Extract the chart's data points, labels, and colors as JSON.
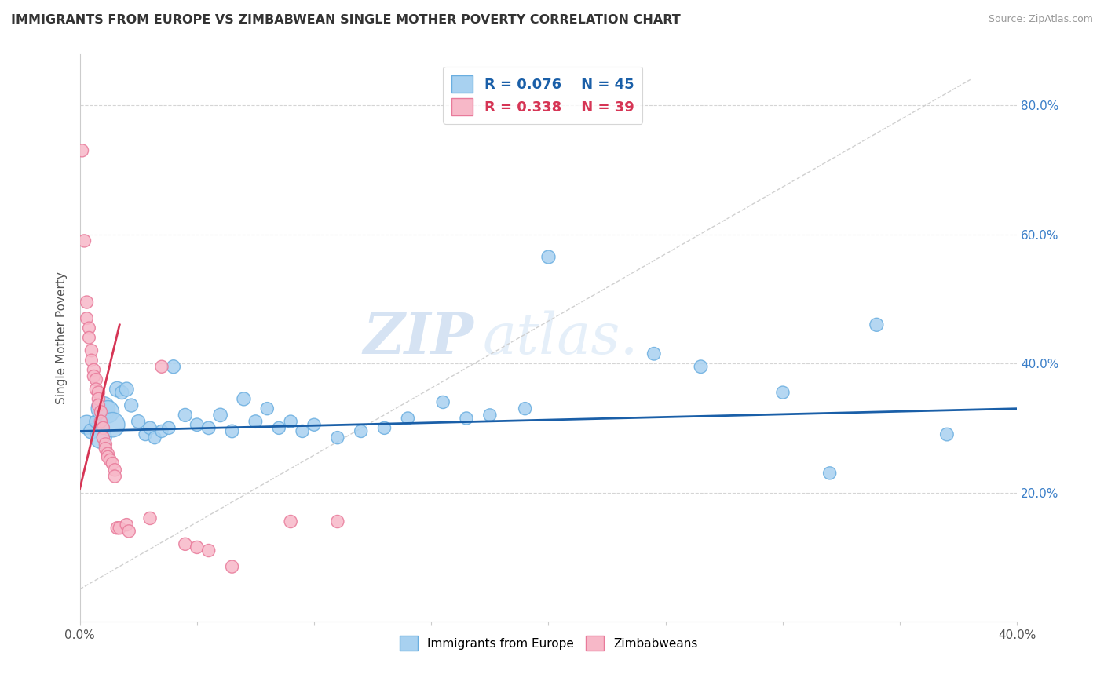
{
  "title": "IMMIGRANTS FROM EUROPE VS ZIMBABWEAN SINGLE MOTHER POVERTY CORRELATION CHART",
  "source": "Source: ZipAtlas.com",
  "ylabel": "Single Mother Poverty",
  "xlim": [
    0.0,
    0.4
  ],
  "ylim": [
    0.0,
    0.88
  ],
  "xticks": [
    0.0,
    0.05,
    0.1,
    0.15,
    0.2,
    0.25,
    0.3,
    0.35,
    0.4
  ],
  "xtick_labels": [
    "0.0%",
    "",
    "",
    "",
    "",
    "",
    "",
    "",
    "40.0%"
  ],
  "yticks": [
    0.2,
    0.4,
    0.6,
    0.8
  ],
  "ytick_labels": [
    "20.0%",
    "40.0%",
    "60.0%",
    "80.0%"
  ],
  "legend_blue_r": "R = 0.076",
  "legend_blue_n": "N = 45",
  "legend_pink_r": "R = 0.338",
  "legend_pink_n": "N = 39",
  "watermark_zip": "ZIP",
  "watermark_atlas": "atlas.",
  "blue_color": "#a8d1f0",
  "blue_edge_color": "#6aaee0",
  "pink_color": "#f7b8c8",
  "pink_edge_color": "#e87a9a",
  "blue_line_color": "#1a5fa8",
  "pink_line_color": "#d63555",
  "dash_color": "#d0d0d0",
  "blue_data": [
    [
      0.003,
      0.305,
      200
    ],
    [
      0.005,
      0.295,
      130
    ],
    [
      0.007,
      0.31,
      100
    ],
    [
      0.009,
      0.285,
      260
    ],
    [
      0.01,
      0.33,
      320
    ],
    [
      0.012,
      0.325,
      280
    ],
    [
      0.014,
      0.305,
      340
    ],
    [
      0.016,
      0.36,
      130
    ],
    [
      0.018,
      0.355,
      100
    ],
    [
      0.02,
      0.36,
      110
    ],
    [
      0.022,
      0.335,
      100
    ],
    [
      0.025,
      0.31,
      100
    ],
    [
      0.028,
      0.29,
      90
    ],
    [
      0.03,
      0.3,
      95
    ],
    [
      0.032,
      0.285,
      90
    ],
    [
      0.035,
      0.295,
      90
    ],
    [
      0.038,
      0.3,
      90
    ],
    [
      0.04,
      0.395,
      100
    ],
    [
      0.045,
      0.32,
      100
    ],
    [
      0.05,
      0.305,
      95
    ],
    [
      0.055,
      0.3,
      95
    ],
    [
      0.06,
      0.32,
      105
    ],
    [
      0.065,
      0.295,
      95
    ],
    [
      0.07,
      0.345,
      100
    ],
    [
      0.075,
      0.31,
      95
    ],
    [
      0.08,
      0.33,
      90
    ],
    [
      0.085,
      0.3,
      90
    ],
    [
      0.09,
      0.31,
      90
    ],
    [
      0.095,
      0.295,
      90
    ],
    [
      0.1,
      0.305,
      90
    ],
    [
      0.11,
      0.285,
      90
    ],
    [
      0.12,
      0.295,
      90
    ],
    [
      0.13,
      0.3,
      90
    ],
    [
      0.14,
      0.315,
      90
    ],
    [
      0.155,
      0.34,
      90
    ],
    [
      0.165,
      0.315,
      90
    ],
    [
      0.175,
      0.32,
      90
    ],
    [
      0.19,
      0.33,
      90
    ],
    [
      0.2,
      0.565,
      100
    ],
    [
      0.245,
      0.415,
      95
    ],
    [
      0.265,
      0.395,
      95
    ],
    [
      0.3,
      0.355,
      90
    ],
    [
      0.32,
      0.23,
      90
    ],
    [
      0.34,
      0.46,
      100
    ],
    [
      0.37,
      0.29,
      95
    ]
  ],
  "pink_data": [
    [
      0.001,
      0.73,
      90
    ],
    [
      0.002,
      0.59,
      90
    ],
    [
      0.003,
      0.495,
      90
    ],
    [
      0.003,
      0.47,
      85
    ],
    [
      0.004,
      0.455,
      85
    ],
    [
      0.004,
      0.44,
      85
    ],
    [
      0.005,
      0.42,
      90
    ],
    [
      0.005,
      0.405,
      85
    ],
    [
      0.006,
      0.39,
      90
    ],
    [
      0.006,
      0.38,
      90
    ],
    [
      0.007,
      0.375,
      90
    ],
    [
      0.007,
      0.36,
      90
    ],
    [
      0.008,
      0.355,
      90
    ],
    [
      0.008,
      0.345,
      90
    ],
    [
      0.008,
      0.335,
      90
    ],
    [
      0.009,
      0.325,
      90
    ],
    [
      0.009,
      0.31,
      90
    ],
    [
      0.01,
      0.3,
      90
    ],
    [
      0.01,
      0.285,
      90
    ],
    [
      0.011,
      0.275,
      90
    ],
    [
      0.011,
      0.268,
      90
    ],
    [
      0.012,
      0.26,
      90
    ],
    [
      0.012,
      0.255,
      90
    ],
    [
      0.013,
      0.25,
      90
    ],
    [
      0.014,
      0.245,
      90
    ],
    [
      0.015,
      0.235,
      90
    ],
    [
      0.015,
      0.225,
      90
    ],
    [
      0.016,
      0.145,
      90
    ],
    [
      0.017,
      0.145,
      90
    ],
    [
      0.02,
      0.15,
      90
    ],
    [
      0.021,
      0.14,
      90
    ],
    [
      0.03,
      0.16,
      90
    ],
    [
      0.035,
      0.395,
      90
    ],
    [
      0.045,
      0.12,
      90
    ],
    [
      0.05,
      0.115,
      90
    ],
    [
      0.055,
      0.11,
      90
    ],
    [
      0.065,
      0.085,
      90
    ],
    [
      0.09,
      0.155,
      90
    ],
    [
      0.11,
      0.155,
      90
    ]
  ],
  "blue_line_x": [
    0.0,
    0.4
  ],
  "blue_line_y": [
    0.295,
    0.33
  ],
  "pink_line_x": [
    0.0,
    0.017
  ],
  "pink_line_y": [
    0.205,
    0.46
  ]
}
